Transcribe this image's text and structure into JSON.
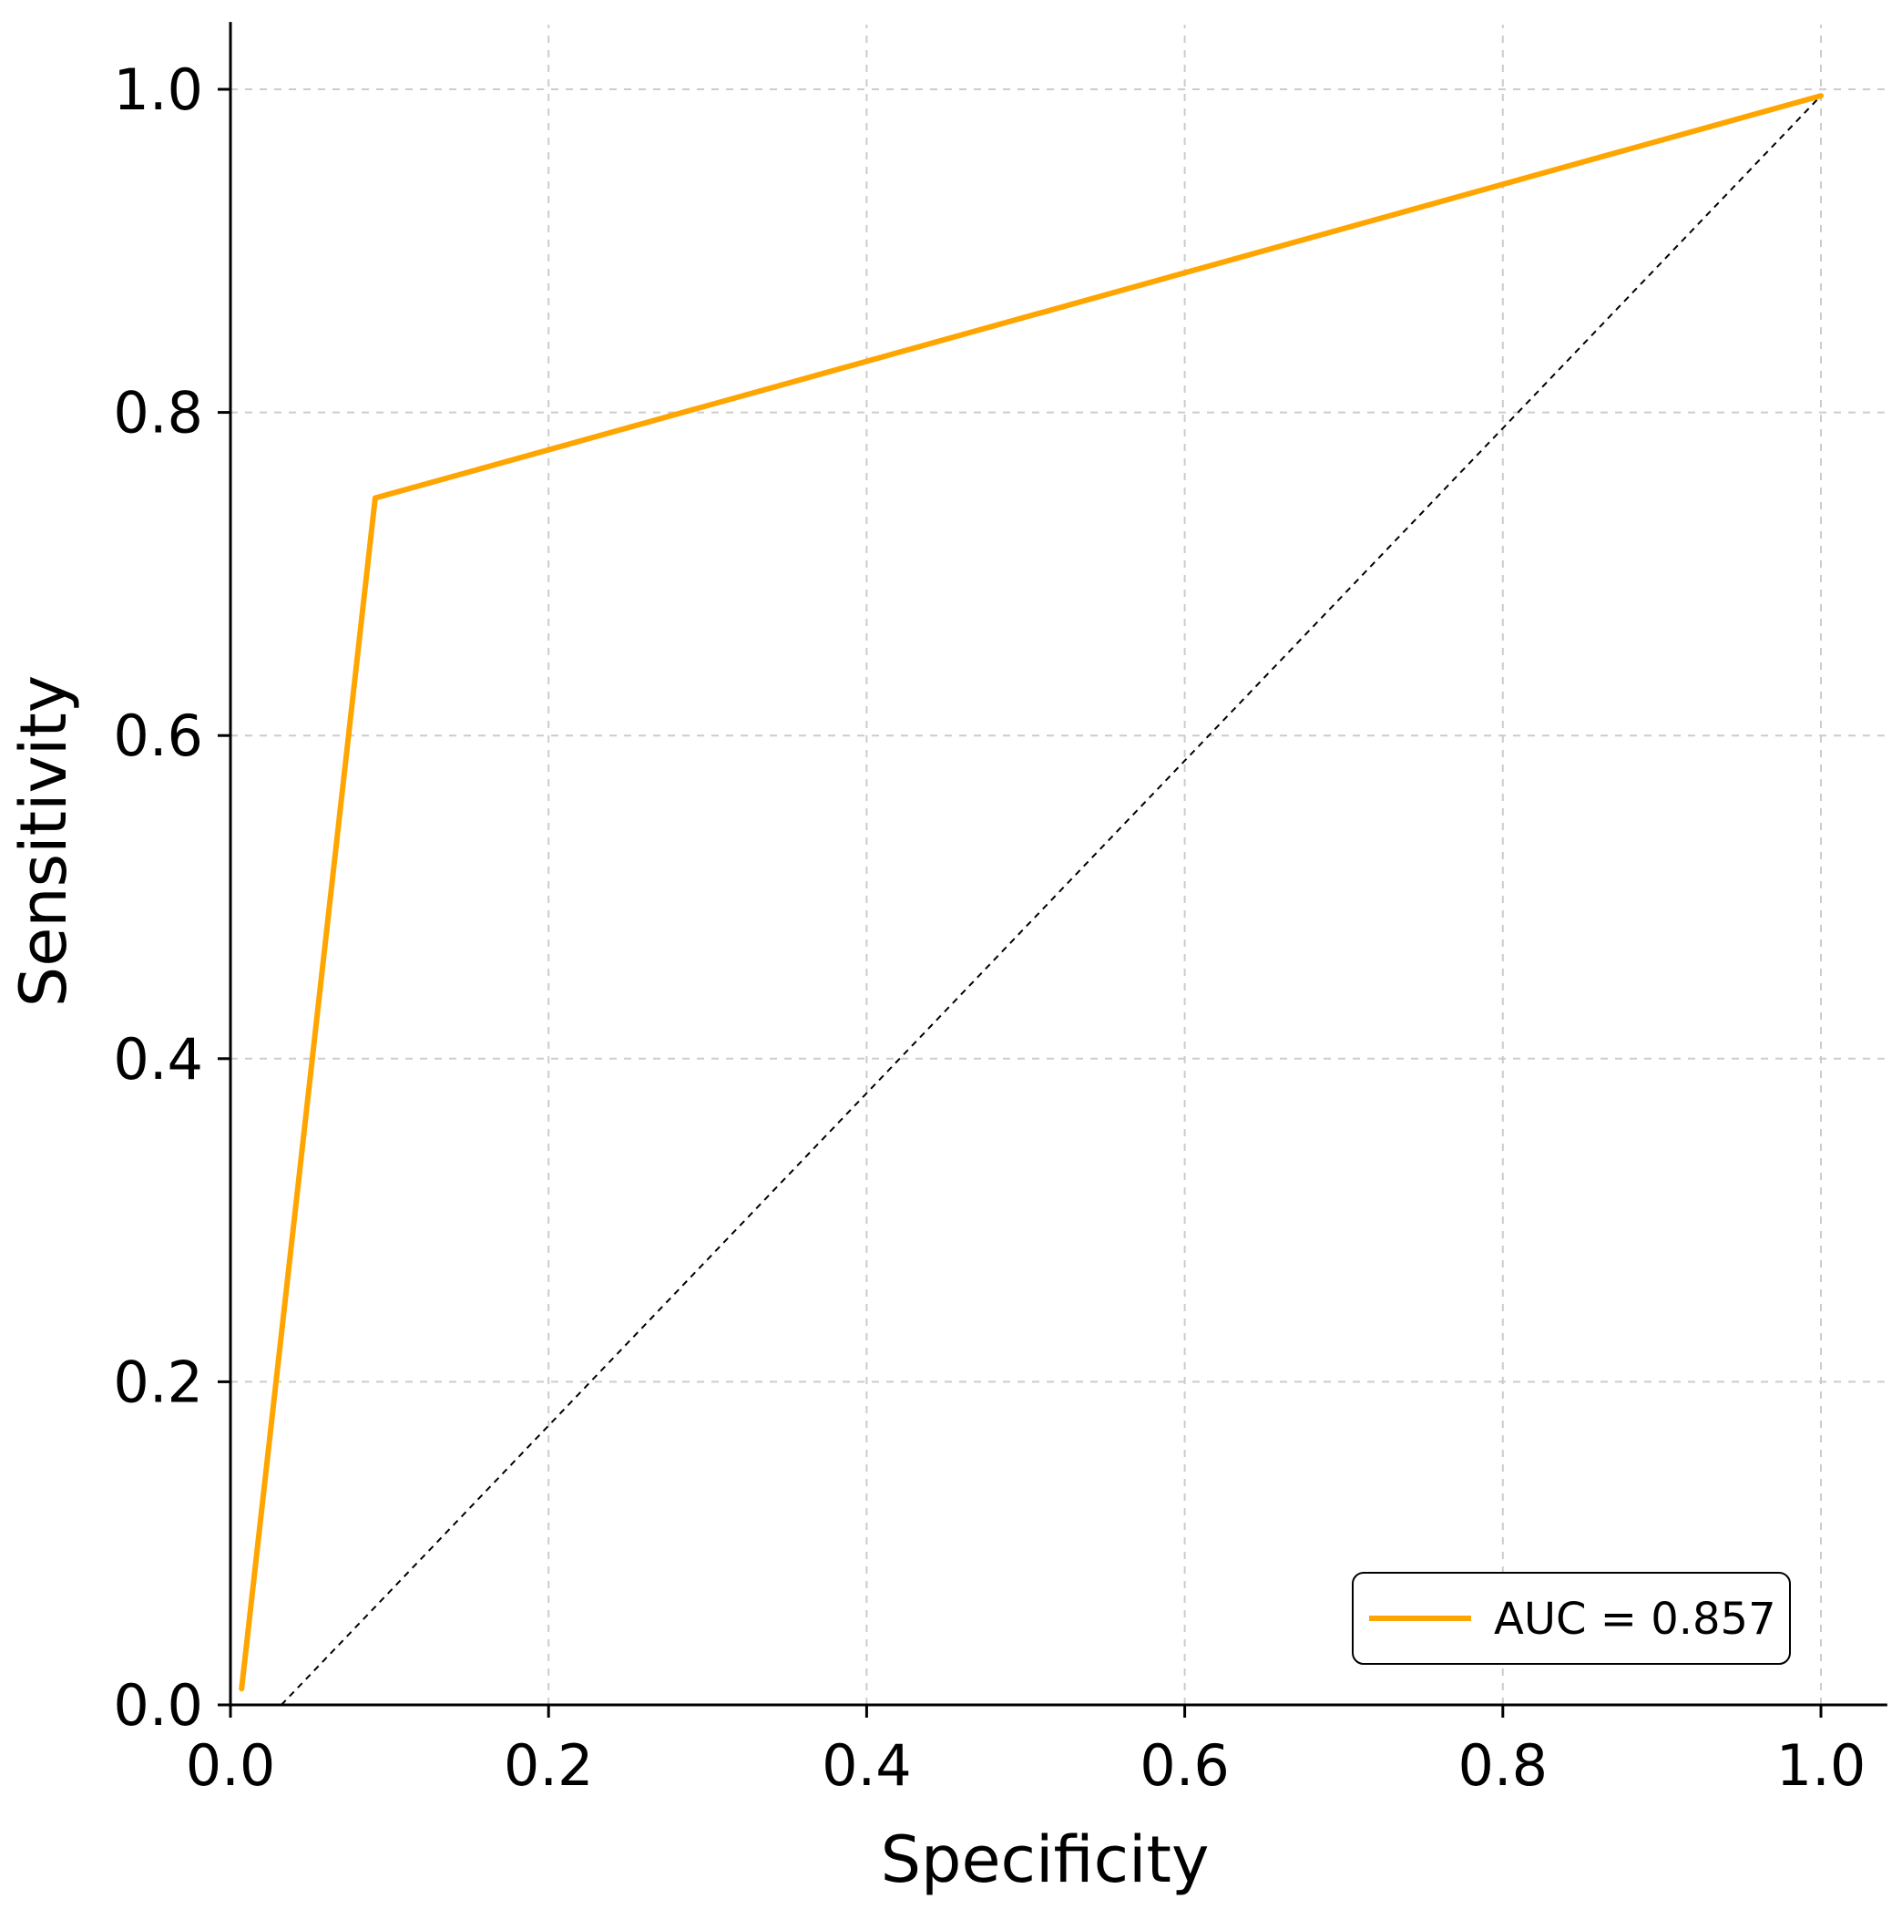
{
  "chart_data": {
    "type": "line",
    "title": "",
    "xlabel": "Specificity",
    "ylabel": "Sensitivity",
    "xlim": [
      0.0,
      1.04
    ],
    "ylim": [
      0.0,
      1.04
    ],
    "xticks": [
      "0.0",
      "0.2",
      "0.4",
      "0.6",
      "0.8",
      "1.0"
    ],
    "yticks": [
      "0.0",
      "0.2",
      "0.4",
      "0.6",
      "0.8",
      "1.0"
    ],
    "grid": true,
    "legend_position": "lower-right",
    "series": [
      {
        "name": "AUC = 0.857",
        "color": "#FFA500",
        "x": [
          0.007,
          0.091,
          1.0
        ],
        "y": [
          0.01,
          0.747,
          0.996
        ]
      }
    ],
    "reference_line": {
      "style": "dashed",
      "color": "#000000",
      "x": [
        0.032,
        1.0
      ],
      "y": [
        0.0,
        0.996
      ]
    }
  }
}
